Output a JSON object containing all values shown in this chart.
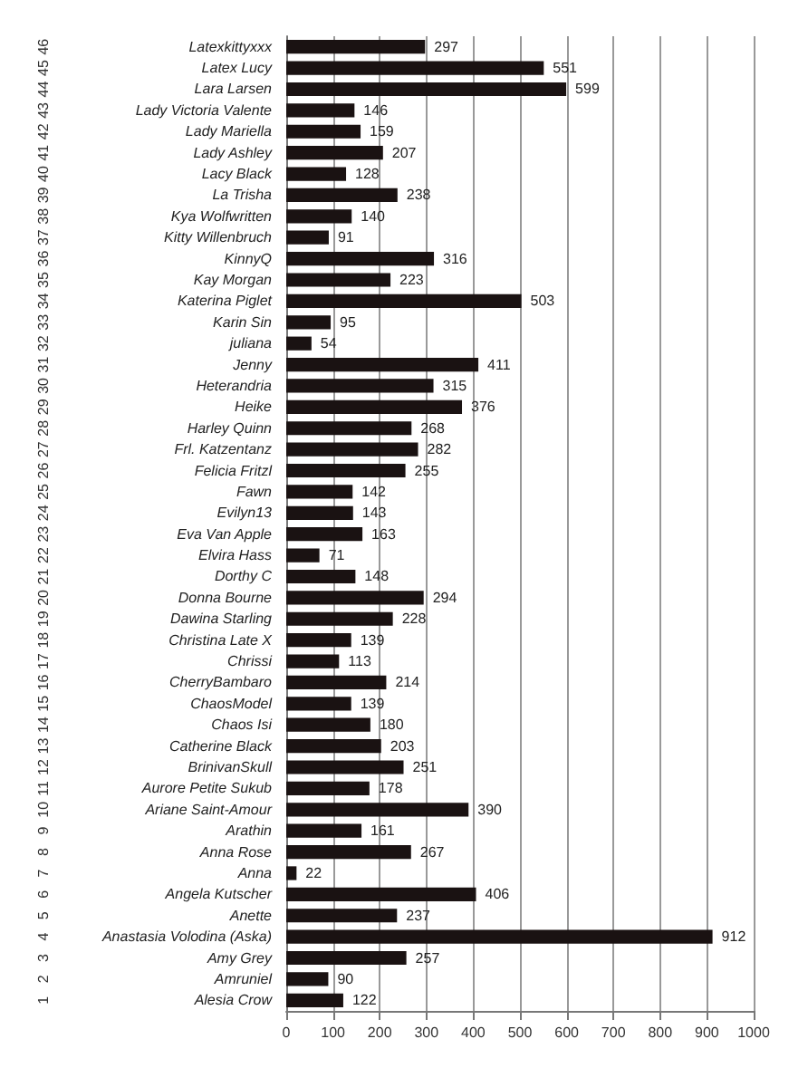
{
  "chart_data": {
    "type": "bar",
    "orientation": "horizontal",
    "categories": [
      "Latexkittyxxx",
      "Latex Lucy",
      "Lara Larsen",
      "Lady Victoria Valente",
      "Lady Mariella",
      "Lady Ashley",
      "Lacy Black",
      "La Trisha",
      "Kya Wolfwritten",
      "Kitty Willenbruch",
      "KinnyQ",
      "Kay Morgan",
      "Katerina Piglet",
      "Karin Sin",
      "juliana",
      "Jenny",
      "Heterandria",
      "Heike",
      "Harley Quinn",
      "Frl. Katzentanz",
      "Felicia Fritzl",
      "Fawn",
      "Evilyn13",
      "Eva Van Apple",
      "Elvira Hass",
      "Dorthy C",
      "Donna Bourne",
      "Dawina Starling",
      "Christina Late X",
      "Chrissi",
      "CherryBambaro",
      "ChaosModel",
      "Chaos Isi",
      "Catherine Black",
      "BrinivanSkull",
      "Aurore Petite Sukub",
      "Ariane Saint-Amour",
      "Arathin",
      "Anna Rose",
      "Anna",
      "Angela Kutscher",
      "Anette",
      "Anastasia Volodina (Aska)",
      "Amy Grey",
      "Amruniel",
      "Alesia Crow"
    ],
    "y2_categories": [
      "46",
      "45",
      "44",
      "43",
      "42",
      "41",
      "40",
      "39",
      "38",
      "37",
      "36",
      "35",
      "34",
      "33",
      "32",
      "31",
      "30",
      "29",
      "28",
      "27",
      "26",
      "25",
      "24",
      "23",
      "22",
      "21",
      "20",
      "19",
      "18",
      "17",
      "16",
      "15",
      "14",
      "13",
      "12",
      "11",
      "10",
      "9",
      "8",
      "7",
      "6",
      "5",
      "4",
      "3",
      "2",
      "1"
    ],
    "values": [
      297,
      551,
      599,
      146,
      159,
      207,
      128,
      238,
      140,
      91,
      316,
      223,
      503,
      95,
      54,
      411,
      315,
      376,
      268,
      282,
      255,
      142,
      143,
      163,
      71,
      148,
      294,
      228,
      139,
      113,
      214,
      139,
      180,
      203,
      251,
      178,
      390,
      161,
      267,
      22,
      406,
      237,
      912,
      257,
      90,
      122
    ],
    "color": "#1a1212",
    "xlim": [
      0,
      1000
    ],
    "xticks": [
      0,
      100,
      200,
      300,
      400,
      500,
      600,
      700,
      800,
      900,
      1000
    ],
    "grid": "x",
    "data_labels": true
  }
}
